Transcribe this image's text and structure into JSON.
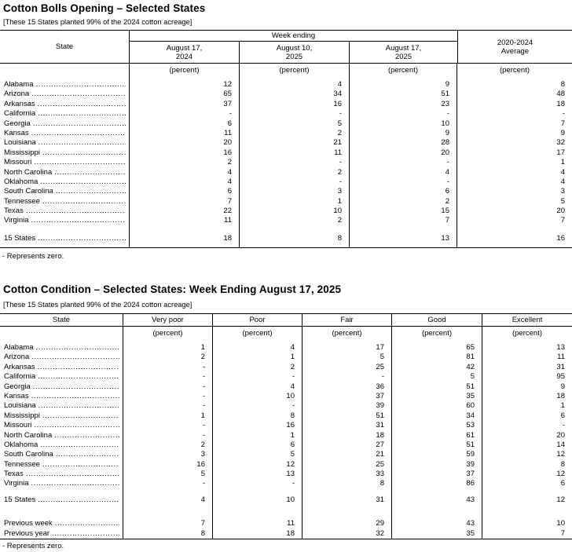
{
  "table1": {
    "title": "Cotton Bolls Opening – Selected States",
    "note": "[These 15 States planted 99% of the 2024 cotton acreage]",
    "headers": {
      "state": "State",
      "week_ending": "Week ending",
      "dates": [
        {
          "l1": "August 17,",
          "l2": "2024"
        },
        {
          "l1": "August 10,",
          "l2": "2025"
        },
        {
          "l1": "August 17,",
          "l2": "2025"
        }
      ],
      "average": {
        "l1": "2020-2024",
        "l2": "Average"
      }
    },
    "unit_rows": [
      {
        "state": "",
        "values": [
          "(percent)",
          "(percent)",
          "(percent)",
          "(percent)"
        ]
      }
    ],
    "rows": [
      {
        "state": "Alabama",
        "values": [
          "12",
          "4",
          "9",
          "8"
        ]
      },
      {
        "state": "Arizona",
        "values": [
          "65",
          "34",
          "51",
          "48"
        ]
      },
      {
        "state": "Arkansas",
        "values": [
          "37",
          "16",
          "23",
          "18"
        ]
      },
      {
        "state": "California",
        "values": [
          "-",
          "-",
          "-",
          "-"
        ]
      },
      {
        "state": "Georgia",
        "values": [
          "6",
          "5",
          "10",
          "7"
        ]
      },
      {
        "state": "Kansas",
        "values": [
          "11",
          "2",
          "9",
          "9"
        ]
      },
      {
        "state": "Louisiana",
        "values": [
          "20",
          "21",
          "28",
          "32"
        ]
      },
      {
        "state": "Mississippi",
        "values": [
          "16",
          "11",
          "20",
          "17"
        ]
      },
      {
        "state": "Missouri",
        "values": [
          "2",
          "-",
          "-",
          "1"
        ]
      },
      {
        "state": "North Carolina",
        "values": [
          "4",
          "2",
          "4",
          "4"
        ]
      },
      {
        "state": "Oklahoma",
        "values": [
          "4",
          "-",
          "-",
          "4"
        ]
      },
      {
        "state": "South Carolina",
        "values": [
          "6",
          "3",
          "6",
          "3"
        ]
      },
      {
        "state": "Tennessee",
        "values": [
          "7",
          "1",
          "2",
          "5"
        ]
      },
      {
        "state": "Texas",
        "values": [
          "22",
          "10",
          "15",
          "20"
        ]
      },
      {
        "state": "Virginia",
        "values": [
          "11",
          "2",
          "7",
          "7"
        ]
      },
      {
        "state": "",
        "values": [
          "",
          "",
          "",
          ""
        ]
      },
      {
        "state": "15 States",
        "values": [
          "18",
          "8",
          "13",
          "16"
        ]
      },
      {
        "state": "",
        "values": [
          "",
          "",
          "",
          ""
        ]
      }
    ],
    "footnote": "- Represents zero."
  },
  "table2": {
    "title": "Cotton Condition – Selected States: Week Ending August 17, 2025",
    "note": "[These 15 States planted 99% of the 2024 cotton acreage]",
    "headers": {
      "state": "State",
      "categories": [
        "Very poor",
        "Poor",
        "Fair",
        "Good",
        "Excellent"
      ]
    },
    "unit_rows": [
      {
        "state": "",
        "values": [
          "(percent)",
          "(percent)",
          "(percent)",
          "(percent)",
          "(percent)"
        ]
      }
    ],
    "rows": [
      {
        "state": "Alabama",
        "values": [
          "1",
          "4",
          "17",
          "65",
          "13"
        ]
      },
      {
        "state": "Arizona",
        "values": [
          "2",
          "1",
          "5",
          "81",
          "11"
        ]
      },
      {
        "state": "Arkansas",
        "values": [
          "-",
          "2",
          "25",
          "42",
          "31"
        ]
      },
      {
        "state": "California",
        "values": [
          "-",
          "-",
          "-",
          "5",
          "95"
        ]
      },
      {
        "state": "Georgia",
        "values": [
          "-",
          "4",
          "36",
          "51",
          "9"
        ]
      },
      {
        "state": "Kansas",
        "values": [
          "-",
          "10",
          "37",
          "35",
          "18"
        ]
      },
      {
        "state": "Louisiana",
        "values": [
          "-",
          "-",
          "39",
          "60",
          "1"
        ]
      },
      {
        "state": "Mississippi",
        "values": [
          "1",
          "8",
          "51",
          "34",
          "6"
        ]
      },
      {
        "state": "Missouri",
        "values": [
          "-",
          "16",
          "31",
          "53",
          "-"
        ]
      },
      {
        "state": "North Carolina",
        "values": [
          "-",
          "1",
          "18",
          "61",
          "20"
        ]
      },
      {
        "state": "Oklahoma",
        "values": [
          "2",
          "6",
          "27",
          "51",
          "14"
        ]
      },
      {
        "state": "South Carolina",
        "values": [
          "3",
          "5",
          "21",
          "59",
          "12"
        ]
      },
      {
        "state": "Tennessee",
        "values": [
          "16",
          "12",
          "25",
          "39",
          "8"
        ]
      },
      {
        "state": "Texas",
        "values": [
          "5",
          "13",
          "33",
          "37",
          "12"
        ]
      },
      {
        "state": "Virginia",
        "values": [
          "-",
          "-",
          "8",
          "86",
          "6"
        ]
      },
      {
        "state": "",
        "values": [
          "",
          "",
          "",
          "",
          ""
        ]
      },
      {
        "state": "15 States",
        "values": [
          "4",
          "10",
          "31",
          "43",
          "12"
        ]
      },
      {
        "state": "",
        "values": [
          "",
          "",
          "",
          "",
          ""
        ]
      },
      {
        "state": "Previous week",
        "values": [
          "7",
          "11",
          "29",
          "43",
          "10"
        ]
      },
      {
        "state": "Previous year",
        "values": [
          "8",
          "18",
          "32",
          "35",
          "7"
        ]
      }
    ],
    "footnote": "- Represents zero."
  }
}
